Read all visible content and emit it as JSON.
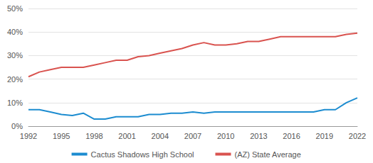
{
  "chart_data": {
    "type": "line",
    "x": [
      1992,
      1993,
      1994,
      1995,
      1996,
      1997,
      1998,
      1999,
      2000,
      2001,
      2002,
      2003,
      2004,
      2005,
      2006,
      2007,
      2008,
      2009,
      2010,
      2011,
      2012,
      2013,
      2014,
      2015,
      2016,
      2017,
      2018,
      2019,
      2020,
      2021,
      2022
    ],
    "series": [
      {
        "name": "Cactus Shadows High School",
        "color": "#1c8cd0",
        "values": [
          7,
          7,
          6,
          5,
          4.5,
          5.5,
          3,
          3,
          4,
          4,
          4,
          5,
          5,
          5.5,
          5.5,
          6,
          5.5,
          6,
          6,
          6,
          6,
          6,
          6,
          6,
          6,
          6,
          6,
          7,
          7,
          10,
          12
        ]
      },
      {
        "name": "(AZ) State Average",
        "color": "#d9534f",
        "values": [
          21,
          23,
          24,
          25,
          25,
          25,
          26,
          27,
          28,
          28,
          29.5,
          30,
          31,
          32,
          33,
          34.5,
          35.5,
          34.5,
          34.5,
          35,
          36,
          36,
          37,
          38,
          38,
          38,
          38,
          38,
          38,
          39,
          39.5
        ]
      }
    ],
    "xlim": [
      1992,
      2022
    ],
    "xticks": [
      1992,
      1995,
      1998,
      2001,
      2004,
      2007,
      2010,
      2013,
      2016,
      2019,
      2022
    ],
    "ylim": [
      0,
      50
    ],
    "yticks": [
      {
        "value": 0,
        "label": "0%"
      },
      {
        "value": 10,
        "label": "10%"
      },
      {
        "value": 20,
        "label": "20%"
      },
      {
        "value": 30,
        "label": "30%"
      },
      {
        "value": 40,
        "label": "40%"
      },
      {
        "value": 50,
        "label": "50%"
      }
    ],
    "grid": true,
    "legend": "bottom"
  }
}
